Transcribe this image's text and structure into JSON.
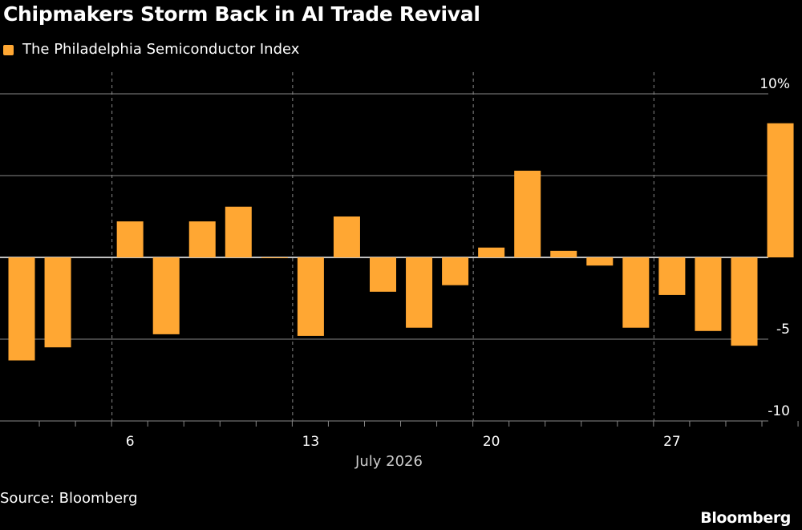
{
  "title": "Chipmakers Storm Back in AI Trade Revival",
  "source": "Source: Bloomberg",
  "brand": "Bloomberg",
  "colors": {
    "background": "#000000",
    "bar": "#ffa733",
    "grid": "#888888",
    "text": "#ffffff"
  },
  "chart_data": {
    "type": "bar",
    "title": "Chipmakers Storm Back in AI Trade Revival",
    "xlabel": "July 2026",
    "ylabel": "",
    "ylim": [
      -10,
      10
    ],
    "y_ticks": [
      10,
      5,
      0,
      -5,
      -10
    ],
    "y_tick_labels": [
      "10%",
      "5",
      "0",
      "-5",
      "-10"
    ],
    "x_tick_labels": [
      "6",
      "13",
      "20",
      "27"
    ],
    "grid": true,
    "legend": "top-left",
    "series": [
      {
        "name": "The Philadelphia Semiconductor Index",
        "color": "#ffa733",
        "x": [
          "2026-07-01",
          "2026-07-02",
          "2026-07-06",
          "2026-07-07",
          "2026-07-08",
          "2026-07-09",
          "2026-07-10",
          "2026-07-13",
          "2026-07-14",
          "2026-07-15",
          "2026-07-16",
          "2026-07-17",
          "2026-07-20",
          "2026-07-21",
          "2026-07-22",
          "2026-07-23",
          "2026-07-24",
          "2026-07-27",
          "2026-07-28",
          "2026-07-29",
          "2026-07-30"
        ],
        "values": [
          -6.3,
          -5.5,
          2.2,
          -4.7,
          2.2,
          3.1,
          0.0,
          -4.8,
          2.5,
          -2.1,
          -4.3,
          -1.7,
          0.6,
          5.3,
          0.4,
          -0.5,
          -4.3,
          -2.3,
          -4.5,
          -5.4,
          8.2
        ]
      }
    ]
  }
}
